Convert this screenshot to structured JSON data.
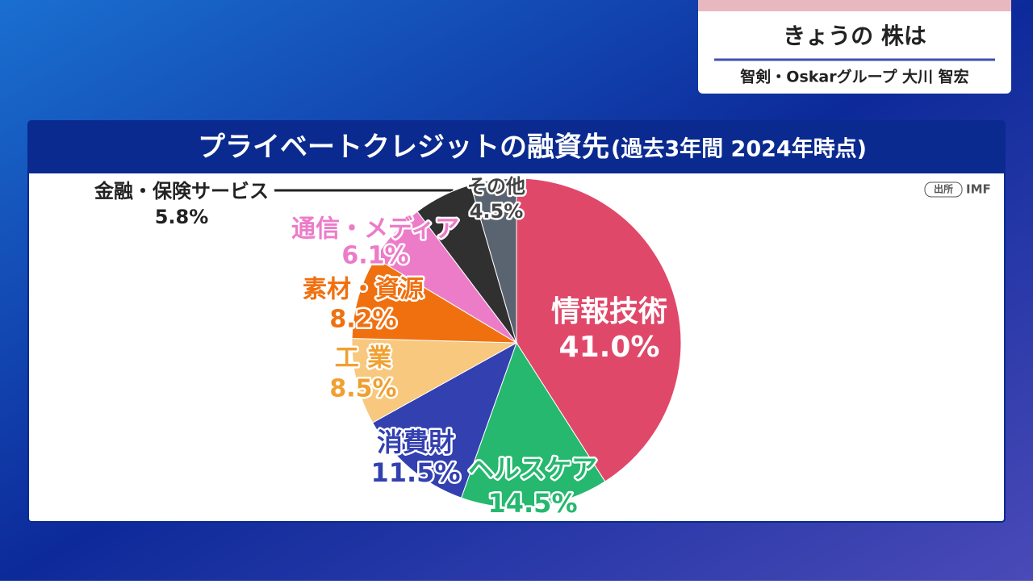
{
  "header": {
    "title": "きょうの 株は",
    "subtitle": "智剣・Oskarグループ 大川 智宏"
  },
  "chart_data": {
    "type": "pie",
    "title": "プライベートクレジットの融資先",
    "subtitle": "(過去3年間 2024年時点)",
    "source_label": "出所",
    "source": "IMF",
    "categories": [
      "情報技術",
      "ヘルスケア",
      "消費財",
      "工 業",
      "素材・資源",
      "通信・メディア",
      "金融・保険サービス",
      "その他"
    ],
    "values": [
      41.0,
      14.5,
      11.5,
      8.5,
      8.2,
      6.1,
      5.8,
      4.5
    ],
    "value_labels": [
      "41.0%",
      "14.5%",
      "11.5%",
      "8.5%",
      "8.2%",
      "6.1%",
      "5.8%",
      "4.5%"
    ],
    "colors": [
      "#e0486a",
      "#25b86e",
      "#3340b0",
      "#f7c87e",
      "#f07010",
      "#ec7cc8",
      "#303030",
      "#5a6470"
    ]
  }
}
